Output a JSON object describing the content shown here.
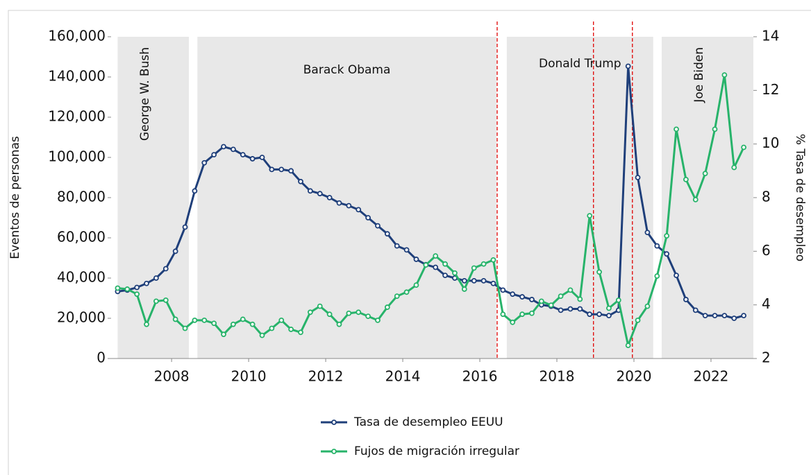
{
  "chart_data": {
    "type": "line",
    "y_label": "Eventos de personas",
    "y2_label": "% Tasa de desempleo",
    "x": [
      2006.6,
      2006.85,
      2007.1,
      2007.35,
      2007.6,
      2007.85,
      2008.1,
      2008.35,
      2008.6,
      2008.85,
      2009.1,
      2009.35,
      2009.6,
      2009.85,
      2010.1,
      2010.35,
      2010.6,
      2010.85,
      2011.1,
      2011.35,
      2011.6,
      2011.85,
      2012.1,
      2012.35,
      2012.6,
      2012.85,
      2013.1,
      2013.35,
      2013.6,
      2013.85,
      2014.1,
      2014.35,
      2014.6,
      2014.85,
      2015.1,
      2015.35,
      2015.6,
      2015.85,
      2016.1,
      2016.35,
      2016.6,
      2016.85,
      2017.1,
      2017.35,
      2017.6,
      2017.85,
      2018.1,
      2018.35,
      2018.6,
      2018.85,
      2019.1,
      2019.35,
      2019.6,
      2019.85,
      2020.1,
      2020.35,
      2020.6,
      2020.85,
      2021.1,
      2021.35,
      2021.6,
      2021.85,
      2022.1,
      2022.35,
      2022.6,
      2022.85
    ],
    "series": [
      {
        "name": "Tasa de desempleo EEUU",
        "color": "#1f3f7a",
        "axis": "y2",
        "values": [
          4.5,
          4.55,
          4.65,
          4.8,
          5.0,
          5.35,
          6.0,
          6.9,
          8.25,
          9.3,
          9.6,
          9.9,
          9.8,
          9.6,
          9.45,
          9.5,
          9.05,
          9.05,
          9.0,
          8.6,
          8.25,
          8.15,
          8.0,
          7.8,
          7.7,
          7.55,
          7.25,
          6.95,
          6.65,
          6.2,
          6.05,
          5.7,
          5.5,
          5.4,
          5.1,
          5.0,
          4.9,
          4.9,
          4.9,
          4.8,
          4.55,
          4.4,
          4.3,
          4.2,
          4.0,
          3.95,
          3.8,
          3.85,
          3.85,
          3.65,
          3.65,
          3.6,
          3.8,
          12.9,
          8.75,
          6.7,
          6.2,
          5.9,
          5.1,
          4.2,
          3.8,
          3.6,
          3.6,
          3.6,
          3.5,
          3.6
        ]
      },
      {
        "name": "Fujos de migración irregular",
        "color": "#27b36a",
        "values": [
          35000,
          34500,
          32000,
          17000,
          28500,
          29000,
          19500,
          15000,
          19000,
          19000,
          17500,
          12000,
          17000,
          19500,
          17000,
          11500,
          15000,
          19000,
          14500,
          13000,
          23000,
          26000,
          22000,
          17000,
          22500,
          23000,
          21000,
          19000,
          25500,
          31000,
          33000,
          36500,
          46500,
          51000,
          47000,
          42500,
          34500,
          45000,
          47000,
          49000,
          22000,
          18000,
          22000,
          22500,
          28500,
          26500,
          31000,
          34000,
          29500,
          71000,
          43000,
          25000,
          29000,
          6500,
          19000,
          26000,
          41000,
          61000,
          114000,
          89000,
          79000,
          92000,
          114000,
          141000,
          95000,
          105000
        ]
      }
    ],
    "xlim": [
      2006.43,
      2023.1
    ],
    "xticks": [
      2008,
      2010,
      2012,
      2014,
      2016,
      2018,
      2020,
      2022
    ],
    "ylim": [
      0,
      160000
    ],
    "yticks": [
      0,
      {
        "value": 20000,
        "label": "20,000"
      },
      {
        "value": 40000,
        "label": "40,000"
      },
      {
        "value": 60000,
        "label": "60,000"
      },
      {
        "value": 80000,
        "label": "80,000"
      },
      {
        "value": 100000,
        "label": "100,000"
      },
      {
        "value": 120000,
        "label": "120,000"
      },
      {
        "value": 140000,
        "label": "140,000"
      },
      {
        "value": 160000,
        "label": "160,000"
      }
    ],
    "y2lim": [
      2,
      14
    ],
    "y2ticks": [
      2,
      4,
      6,
      8,
      10,
      12,
      14
    ],
    "bands": [
      {
        "label": "George W. Bush",
        "start": 2006.6,
        "end": 2008.45,
        "vertical": true
      },
      {
        "label": "Barack Obama",
        "start": 2008.67,
        "end": 2016.43,
        "vertical": false
      },
      {
        "label": "Donald Trump",
        "start": 2016.7,
        "end": 2020.5,
        "vertical": false
      },
      {
        "label": "Joe Biden",
        "start": 2020.72,
        "end": 2023.1,
        "vertical": true
      }
    ],
    "band_color": "#e8e8e8",
    "vlines": [
      2016.45,
      2018.95,
      2019.96
    ],
    "vline_color": "#e00000"
  }
}
